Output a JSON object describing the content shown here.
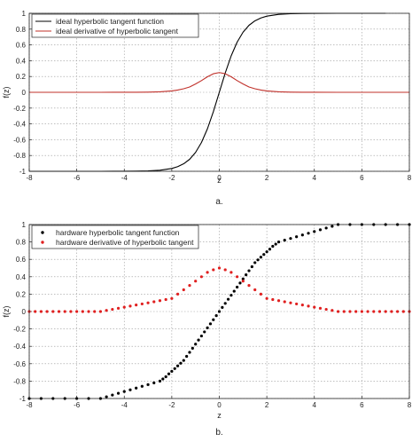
{
  "chart_data": [
    {
      "type": "line",
      "caption": "a.",
      "xlabel": "z",
      "ylabel": "f(z)",
      "xlim": [
        -8,
        8
      ],
      "ylim": [
        -1,
        1
      ],
      "xticks": [
        "-8",
        "-6",
        "-4",
        "-2",
        "0",
        "2",
        "4",
        "6",
        "8"
      ],
      "yticks": [
        "-1",
        "-0.8",
        "-0.6",
        "-0.4",
        "-0.2",
        "0",
        "0.2",
        "0.4",
        "0.6",
        "0.8",
        "1"
      ],
      "grid": true,
      "legend": "top-left",
      "series": [
        {
          "name": "ideal hyperbolic tangent function",
          "color": "#000000",
          "marker": "none",
          "x": [
            -8,
            -7,
            -6,
            -5,
            -4,
            -3.5,
            -3,
            -2.5,
            -2,
            -1.75,
            -1.5,
            -1.25,
            -1,
            -0.75,
            -0.5,
            -0.25,
            0,
            0.25,
            0.5,
            0.75,
            1,
            1.25,
            1.5,
            1.75,
            2,
            2.5,
            3,
            3.5,
            4,
            5,
            6,
            7
          ],
          "y": [
            -1,
            -1,
            -1,
            -0.9999,
            -0.9993,
            -0.9982,
            -0.9951,
            -0.9866,
            -0.964,
            -0.9414,
            -0.9051,
            -0.8483,
            -0.7616,
            -0.6351,
            -0.4621,
            -0.2449,
            0,
            0.2449,
            0.4621,
            0.6351,
            0.7616,
            0.8483,
            0.9051,
            0.9414,
            0.964,
            0.9866,
            0.9951,
            0.9982,
            0.9993,
            0.9999,
            1,
            1
          ]
        },
        {
          "name": "ideal derivative of hyperbolic tangent",
          "color": "#c0302a",
          "marker": "none",
          "x": [
            -8,
            -7,
            -6,
            -5,
            -4,
            -3.5,
            -3,
            -2.5,
            -2,
            -1.75,
            -1.5,
            -1.25,
            -1,
            -0.75,
            -0.5,
            -0.25,
            0,
            0.25,
            0.5,
            0.75,
            1,
            1.25,
            1.5,
            1.75,
            2,
            2.5,
            3,
            3.5,
            4,
            5,
            6,
            7,
            8
          ],
          "y": [
            0,
            0,
            0,
            0,
            0.0003,
            0.0009,
            0.0025,
            0.0067,
            0.0177,
            0.0287,
            0.0452,
            0.0675,
            0.105,
            0.1483,
            0.1966,
            0.2351,
            0.25,
            0.2351,
            0.1966,
            0.1483,
            0.105,
            0.0675,
            0.0452,
            0.0287,
            0.0177,
            0.0067,
            0.0025,
            0.0009,
            0.0003,
            0,
            0,
            0,
            0
          ]
        }
      ]
    },
    {
      "type": "scatter",
      "caption": "b.",
      "xlabel": "z",
      "ylabel": "f(z)",
      "xlim": [
        -8,
        8
      ],
      "ylim": [
        -1,
        1
      ],
      "xticks": [
        "-8",
        "-6",
        "-4",
        "-2",
        "0",
        "2",
        "4",
        "6",
        "8"
      ],
      "yticks": [
        "-1",
        "-0.8",
        "-0.6",
        "-0.4",
        "-0.2",
        "0",
        "0.2",
        "0.4",
        "0.6",
        "0.8",
        "1"
      ],
      "grid": true,
      "legend": "top-left",
      "series": [
        {
          "name": "hardware hyperbolic tangent function",
          "color": "#000000",
          "marker": "dot",
          "x": [
            -8,
            -7.5,
            -7,
            -6.5,
            -6,
            -5.5,
            -5,
            -4.75,
            -4.5,
            -4.25,
            -4,
            -3.75,
            -3.5,
            -3.25,
            -3,
            -2.75,
            -2.5,
            -2.375,
            -2.25,
            -2.125,
            -2,
            -1.875,
            -1.75,
            -1.625,
            -1.5,
            -1.375,
            -1.25,
            -1.125,
            -1,
            -0.875,
            -0.75,
            -0.625,
            -0.5,
            -0.375,
            -0.25,
            -0.125,
            0,
            0.125,
            0.25,
            0.375,
            0.5,
            0.625,
            0.75,
            0.875,
            1,
            1.125,
            1.25,
            1.375,
            1.5,
            1.625,
            1.75,
            1.875,
            2,
            2.125,
            2.25,
            2.375,
            2.5,
            2.75,
            3,
            3.25,
            3.5,
            3.75,
            4,
            4.25,
            4.5,
            4.75,
            5,
            5.5,
            6,
            6.5,
            7,
            7.5,
            8
          ],
          "y": [
            -1,
            -1,
            -1,
            -1,
            -1,
            -1,
            -1,
            -0.98,
            -0.96,
            -0.94,
            -0.92,
            -0.9,
            -0.88,
            -0.86,
            -0.84,
            -0.82,
            -0.8,
            -0.775,
            -0.75,
            -0.717,
            -0.687,
            -0.656,
            -0.625,
            -0.594,
            -0.562,
            -0.515,
            -0.469,
            -0.422,
            -0.375,
            -0.328,
            -0.281,
            -0.234,
            -0.187,
            -0.141,
            -0.094,
            -0.047,
            0,
            0.047,
            0.094,
            0.141,
            0.187,
            0.234,
            0.281,
            0.328,
            0.375,
            0.422,
            0.469,
            0.515,
            0.562,
            0.594,
            0.625,
            0.656,
            0.687,
            0.717,
            0.75,
            0.775,
            0.8,
            0.82,
            0.84,
            0.86,
            0.88,
            0.9,
            0.92,
            0.94,
            0.96,
            0.98,
            1,
            1,
            1,
            1,
            1,
            1,
            1
          ]
        },
        {
          "name": "hardware derivative of hyperbolic tangent",
          "color": "#e02020",
          "marker": "dot",
          "x": [
            -8,
            -7.75,
            -7.5,
            -7.25,
            -7,
            -6.75,
            -6.5,
            -6.25,
            -6,
            -5.75,
            -5.5,
            -5.25,
            -5,
            -4.75,
            -4.5,
            -4.25,
            -4,
            -3.75,
            -3.5,
            -3.25,
            -3,
            -2.75,
            -2.5,
            -2.25,
            -2,
            -1.75,
            -1.5,
            -1.25,
            -1,
            -0.75,
            -0.5,
            -0.25,
            0,
            0.25,
            0.5,
            0.75,
            1,
            1.25,
            1.5,
            1.75,
            2,
            2.25,
            2.5,
            2.75,
            3,
            3.25,
            3.5,
            3.75,
            4,
            4.25,
            4.5,
            4.75,
            5,
            5.25,
            5.5,
            5.75,
            6,
            6.25,
            6.5,
            6.75,
            7,
            7.25,
            7.5,
            7.75,
            8
          ],
          "y": [
            0,
            0,
            0,
            0,
            0,
            0,
            0,
            0,
            0,
            0,
            0,
            0,
            0,
            0.0125,
            0.025,
            0.0375,
            0.05,
            0.0625,
            0.075,
            0.0875,
            0.1,
            0.1125,
            0.125,
            0.1375,
            0.15,
            0.2,
            0.25,
            0.3,
            0.35,
            0.4,
            0.45,
            0.48,
            0.5,
            0.48,
            0.45,
            0.4,
            0.35,
            0.3,
            0.25,
            0.2,
            0.15,
            0.1375,
            0.125,
            0.1125,
            0.1,
            0.0875,
            0.075,
            0.0625,
            0.05,
            0.0375,
            0.025,
            0.0125,
            0,
            0,
            0,
            0,
            0,
            0,
            0,
            0,
            0,
            0,
            0,
            0,
            0
          ]
        }
      ]
    }
  ]
}
